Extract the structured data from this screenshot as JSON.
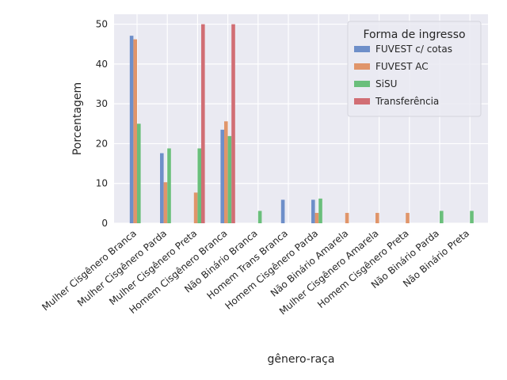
{
  "chart_data": {
    "type": "bar",
    "xlabel": "gênero-raça",
    "ylabel": "Porcentagem",
    "ylim": [
      0,
      52.5
    ],
    "yticks": [
      0,
      10,
      20,
      30,
      40,
      50
    ],
    "grid": true,
    "legend_placement": "top-right",
    "legend_title": "Forma de ingresso",
    "categories": [
      "Mulher Cisgênero Branca",
      "Mulher Cisgênero Parda",
      "Mulher Cisgênero Preta",
      "Homem Cisgênero Branca",
      "Não Binário Branca",
      "Homem Trans Branca",
      "Homem Cisgênero Parda",
      "Não Binário Amarela",
      "Mulher Cisgênero Amarela",
      "Homem Cisgênero Preta",
      "Não Binário Parda",
      "Não Binário Preta"
    ],
    "series": [
      {
        "name": "FUVEST c/ cotas",
        "color": "#6e8fc9",
        "values": [
          47.1,
          17.6,
          0,
          23.5,
          0,
          5.9,
          5.9,
          0,
          0,
          0,
          0,
          0
        ]
      },
      {
        "name": "FUVEST AC",
        "color": "#e0956a",
        "values": [
          46.2,
          10.3,
          7.7,
          25.6,
          0,
          0,
          2.6,
          2.6,
          2.6,
          2.6,
          0,
          0
        ]
      },
      {
        "name": "SiSU",
        "color": "#6abf7b",
        "values": [
          25.0,
          18.8,
          18.8,
          21.9,
          3.1,
          0,
          6.2,
          0,
          0,
          0,
          3.1,
          3.1
        ]
      },
      {
        "name": "Transferência",
        "color": "#d16e74",
        "values": [
          0,
          0,
          50.0,
          50.0,
          0,
          0,
          0,
          0,
          0,
          0,
          0,
          0
        ]
      }
    ]
  }
}
